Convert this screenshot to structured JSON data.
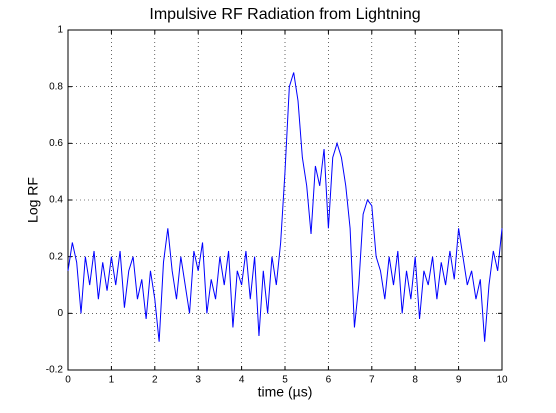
{
  "chart_data": {
    "type": "line",
    "title": "Impulsive RF Radiation from Lightning",
    "xlabel": "time (µs)",
    "ylabel": "Log RF",
    "x": [
      0,
      0.1,
      0.2,
      0.3,
      0.4,
      0.5,
      0.6,
      0.7,
      0.8,
      0.9,
      1,
      1.1,
      1.2,
      1.3,
      1.4,
      1.5,
      1.6,
      1.7,
      1.8,
      1.9,
      2,
      2.1,
      2.2,
      2.3,
      2.4,
      2.5,
      2.6,
      2.7,
      2.8,
      2.9,
      3,
      3.1,
      3.2,
      3.3,
      3.4,
      3.5,
      3.6,
      3.7,
      3.8,
      3.9,
      4,
      4.1,
      4.2,
      4.3,
      4.4,
      4.5,
      4.6,
      4.7,
      4.8,
      4.9,
      5,
      5.1,
      5.2,
      5.3,
      5.4,
      5.5,
      5.6,
      5.7,
      5.8,
      5.9,
      6,
      6.1,
      6.2,
      6.3,
      6.4,
      6.5,
      6.6,
      6.7,
      6.8,
      6.9,
      7,
      7.1,
      7.2,
      7.3,
      7.4,
      7.5,
      7.6,
      7.7,
      7.8,
      7.9,
      8,
      8.1,
      8.2,
      8.3,
      8.4,
      8.5,
      8.6,
      8.7,
      8.8,
      8.9,
      9,
      9.1,
      9.2,
      9.3,
      9.4,
      9.5,
      9.6,
      9.7,
      9.8,
      9.9,
      10
    ],
    "series": [
      {
        "name": "Log RF",
        "color": "#0000ff",
        "values": [
          0.15,
          0.25,
          0.18,
          0,
          0.2,
          0.1,
          0.22,
          0.05,
          0.18,
          0.08,
          0.2,
          0.1,
          0.22,
          0.02,
          0.15,
          0.2,
          0.05,
          0.12,
          -0.02,
          0.15,
          0.05,
          -0.1,
          0.18,
          0.3,
          0.15,
          0.05,
          0.2,
          0.1,
          0,
          0.22,
          0.15,
          0.25,
          0,
          0.12,
          0.05,
          0.2,
          0.1,
          0.22,
          -0.05,
          0.15,
          0.1,
          0.22,
          0.05,
          0.2,
          -0.08,
          0.15,
          0,
          0.2,
          0.1,
          0.25,
          0.5,
          0.8,
          0.85,
          0.75,
          0.55,
          0.45,
          0.28,
          0.52,
          0.45,
          0.58,
          0.3,
          0.55,
          0.6,
          0.55,
          0.45,
          0.3,
          -0.05,
          0.1,
          0.35,
          0.4,
          0.38,
          0.2,
          0.15,
          0.05,
          0.2,
          0.1,
          0.22,
          0,
          0.15,
          0.05,
          0.2,
          -0.02,
          0.15,
          0.1,
          0.2,
          0.05,
          0.18,
          0.1,
          0.22,
          0.12,
          0.3,
          0.2,
          0.1,
          0.15,
          0.05,
          0.12,
          -0.1,
          0.1,
          0.22,
          0.15,
          0.3
        ]
      }
    ],
    "xlim": [
      0,
      10
    ],
    "xticks": [
      0,
      1,
      2,
      3,
      4,
      5,
      6,
      7,
      8,
      9,
      10
    ],
    "ylim": [
      -0.2,
      1
    ],
    "yticks": [
      -0.2,
      0,
      0.2,
      0.4,
      0.6,
      0.8,
      1
    ],
    "grid": true
  }
}
